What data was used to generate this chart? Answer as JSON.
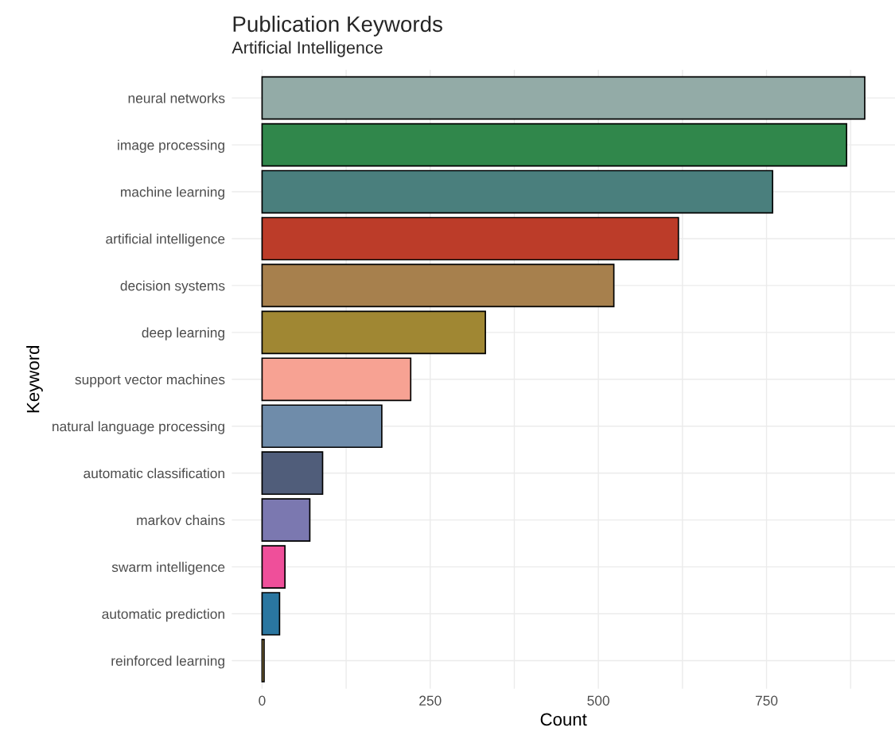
{
  "chart_data": {
    "type": "bar",
    "orientation": "horizontal",
    "title": "Publication Keywords",
    "subtitle": "Artificial Intelligence",
    "xlabel": "Count",
    "ylabel": "Keyword",
    "categories": [
      "neural networks",
      "image processing",
      "machine learning",
      "artificial intelligence",
      "decision systems",
      "deep learning",
      "support vector machines",
      "natural language processing",
      "automatic classification",
      "markov chains",
      "swarm intelligence",
      "automatic prediction",
      "reinforced learning"
    ],
    "values": [
      896,
      869,
      759,
      619,
      523,
      332,
      221,
      178,
      90,
      71,
      34,
      26,
      3
    ],
    "colors": [
      "#93aba7",
      "#30874b",
      "#4a7f7d",
      "#bc3c29",
      "#a7804d",
      "#a08733",
      "#f7a293",
      "#6f8caa",
      "#505d7a",
      "#7b78b0",
      "#ef4f9a",
      "#2a76a0",
      "#c8a85a"
    ],
    "xlim": [
      -45,
      941
    ],
    "xticks": [
      0,
      {
        "value": 125,
        "label": null
      },
      250,
      {
        "value": 375,
        "label": null
      },
      500,
      {
        "value": 625,
        "label": null
      },
      750,
      {
        "value": 875,
        "label": null
      }
    ],
    "grid": true,
    "legend": false
  }
}
